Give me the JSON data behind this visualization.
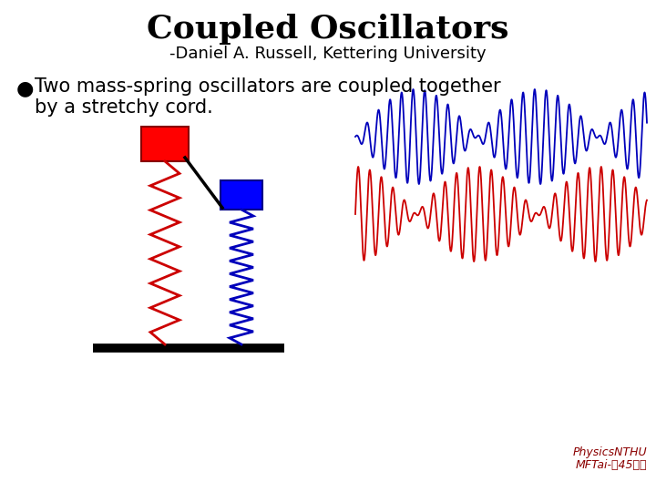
{
  "title": "Coupled Oscillators",
  "subtitle": "-Daniel A. Russell, Kettering University",
  "bullet_text1": "Two mass-spring oscillators are coupled together",
  "bullet_text2": "by a stretchy cord.",
  "title_fontsize": 26,
  "subtitle_fontsize": 13,
  "bullet_fontsize": 15,
  "bg_color": "#ffffff",
  "text_color": "#000000",
  "red_color": "#cc0000",
  "blue_color": "#0000bb",
  "watermark_line1": "PhysicsNTHU",
  "watermark_line2": "MFTai-戔45明鵬",
  "watermark_fontsize": 9,
  "watermark_color": "#8B0000"
}
